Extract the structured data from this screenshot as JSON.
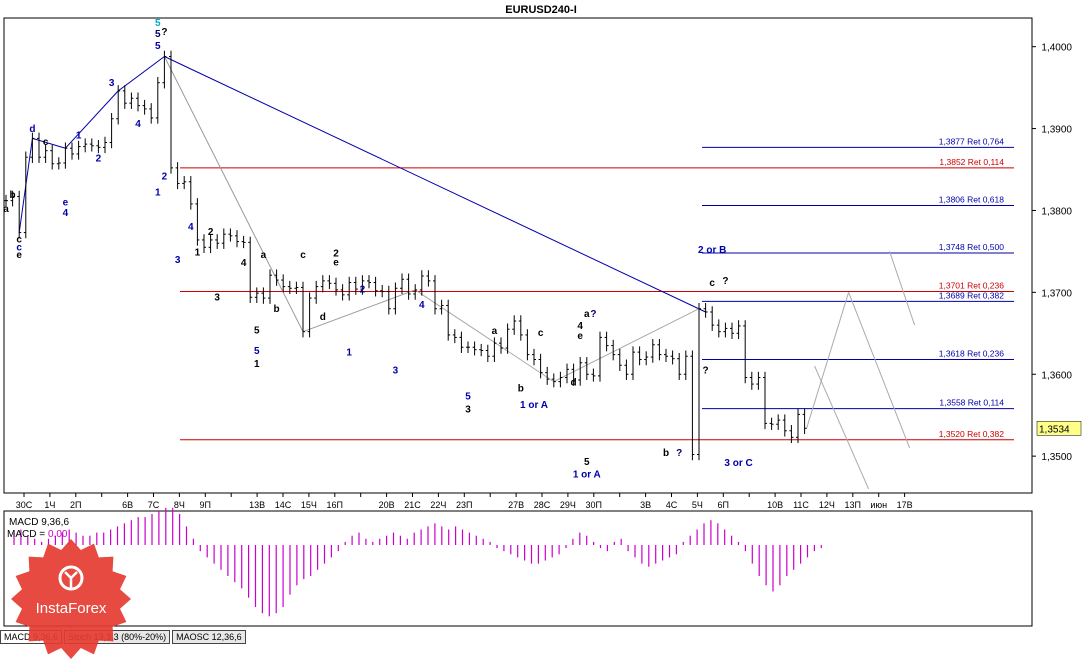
{
  "chart_data": {
    "type": "line",
    "title": "EURUSD240-I",
    "price_axis": {
      "min": 1.3455,
      "max": 1.4035,
      "ticks": [
        "1,4000",
        "1,3900",
        "1,3800",
        "1,3700",
        "1,3600",
        "1,3500"
      ],
      "current": "1,3534"
    },
    "x_labels": [
      "30C",
      "1Ч",
      "2П",
      "",
      "6В",
      "7С",
      "8Ч",
      "9П",
      "",
      "13В",
      "14С",
      "15Ч",
      "16П",
      "",
      "20В",
      "21С",
      "22Ч",
      "23П",
      "",
      "27В",
      "28С",
      "29Ч",
      "30П",
      "",
      "3В",
      "4С",
      "5Ч",
      "6П",
      "",
      "10В",
      "11С",
      "12Ч",
      "13П",
      "июн",
      "17В"
    ],
    "series": [
      {
        "values": [
          1.3812,
          1.3817,
          1.3773,
          1.3865,
          1.3888,
          1.3865,
          1.3873,
          1.3857,
          1.3858,
          1.3876,
          1.3869,
          1.3878,
          1.3881,
          1.3879,
          1.3877,
          1.3883,
          1.3912,
          1.3946,
          1.3931,
          1.3937,
          1.3928,
          1.3924,
          1.3913,
          1.3956,
          1.3988,
          1.3852,
          1.3833,
          1.3835,
          1.3808,
          1.3764,
          1.3755,
          1.3764,
          1.376,
          1.3771,
          1.3769,
          1.3762,
          1.3761,
          1.3694,
          1.3699,
          1.3693,
          1.3721,
          1.3715,
          1.3707,
          1.3705,
          1.3706,
          1.3652,
          1.3693,
          1.3707,
          1.3714,
          1.3711,
          1.3703,
          1.3697,
          1.3712,
          1.3704,
          1.3714,
          1.3712,
          1.3702,
          1.3701,
          1.368,
          1.3705,
          1.3716,
          1.3698,
          1.3703,
          1.372,
          1.3714,
          1.368,
          1.3684,
          1.3648,
          1.3645,
          1.3633,
          1.3633,
          1.363,
          1.3629,
          1.3622,
          1.3638,
          1.3632,
          1.3655,
          1.3665,
          1.3648,
          1.3624,
          1.3618,
          1.3602,
          1.3594,
          1.3591,
          1.3596,
          1.3606,
          1.3593,
          1.3614,
          1.36,
          1.3598,
          1.3645,
          1.3635,
          1.3624,
          1.3611,
          1.36,
          1.3627,
          1.3618,
          1.3621,
          1.3636,
          1.3624,
          1.3622,
          1.3619,
          1.36,
          1.3622,
          1.3502,
          1.368,
          1.3676,
          1.366,
          1.3652,
          1.3656,
          1.365,
          1.3659,
          1.3596,
          1.3588,
          1.3596,
          1.354,
          1.3539,
          1.3544,
          1.3531,
          1.3523,
          1.3551,
          1.3534
        ]
      }
    ],
    "ret_levels": [
      {
        "value": 1.3877,
        "label": "1,3877 Ret 0,764",
        "color": "#0000aa"
      },
      {
        "value": 1.3852,
        "label": "1,3852 Ret 0,114",
        "color": "#cc0000"
      },
      {
        "value": 1.3806,
        "label": "1,3806 Ret 0,618",
        "color": "#0000aa"
      },
      {
        "value": 1.3748,
        "label": "1,3748 Ret 0,500",
        "color": "#0000aa"
      },
      {
        "value": 1.3701,
        "label": "1,3701 Ret 0,236",
        "color": "#cc0000"
      },
      {
        "value": 1.3689,
        "label": "1,3689 Ret 0,382",
        "color": "#0000aa"
      },
      {
        "value": 1.3618,
        "label": "1,3618 Ret 0,236",
        "color": "#0000aa"
      },
      {
        "value": 1.3558,
        "label": "1,3558 Ret 0,114",
        "color": "#0000aa"
      },
      {
        "value": 1.352,
        "label": "1,3520 Ret 0,382",
        "color": "#cc0000"
      }
    ],
    "wave_labels": [
      {
        "x": 0,
        "y": 1.3798,
        "text": "a",
        "color": "#000000"
      },
      {
        "x": 1,
        "y": 1.3815,
        "text": "b",
        "color": "#000000"
      },
      {
        "x": 2,
        "y": 1.3761,
        "text": "c",
        "color": "#000000"
      },
      {
        "x": 2,
        "y": 1.3751,
        "text": "c",
        "color": "#0000aa"
      },
      {
        "x": 2,
        "y": 1.3742,
        "text": "e",
        "color": "#000000"
      },
      {
        "x": 4,
        "y": 1.3896,
        "text": "d",
        "color": "#0000aa"
      },
      {
        "x": 6,
        "y": 1.388,
        "text": "c",
        "color": "#000000"
      },
      {
        "x": 9,
        "y": 1.3806,
        "text": "e",
        "color": "#0000aa"
      },
      {
        "x": 9,
        "y": 1.3793,
        "text": "4",
        "color": "#0000aa"
      },
      {
        "x": 11,
        "y": 1.3888,
        "text": "1",
        "color": "#0000aa"
      },
      {
        "x": 14,
        "y": 1.386,
        "text": "2",
        "color": "#0000aa"
      },
      {
        "x": 16,
        "y": 1.3952,
        "text": "3",
        "color": "#0000aa"
      },
      {
        "x": 20,
        "y": 1.3902,
        "text": "4",
        "color": "#0000aa"
      },
      {
        "x": 23,
        "y": 1.4025,
        "text": "5",
        "color": "#00aacc"
      },
      {
        "x": 23,
        "y": 1.4012,
        "text": "5",
        "color": "#000066"
      },
      {
        "x": 24,
        "y": 1.4014,
        "text": "?",
        "color": "#000000"
      },
      {
        "x": 23,
        "y": 1.3997,
        "text": "5",
        "color": "#0000aa"
      },
      {
        "x": 24,
        "y": 1.3838,
        "text": "2",
        "color": "#0000aa"
      },
      {
        "x": 23,
        "y": 1.3818,
        "text": "1",
        "color": "#0000aa"
      },
      {
        "x": 26,
        "y": 1.3736,
        "text": "3",
        "color": "#0000aa"
      },
      {
        "x": 28,
        "y": 1.3776,
        "text": "4",
        "color": "#0000aa"
      },
      {
        "x": 29,
        "y": 1.3745,
        "text": "1",
        "color": "#000000"
      },
      {
        "x": 31,
        "y": 1.377,
        "text": "2",
        "color": "#000000"
      },
      {
        "x": 32,
        "y": 1.369,
        "text": "3",
        "color": "#000000"
      },
      {
        "x": 36,
        "y": 1.3732,
        "text": "4",
        "color": "#000000"
      },
      {
        "x": 38,
        "y": 1.365,
        "text": "5",
        "color": "#000000"
      },
      {
        "x": 38,
        "y": 1.3625,
        "text": "5",
        "color": "#0000aa"
      },
      {
        "x": 38,
        "y": 1.3609,
        "text": "1",
        "color": "#000000"
      },
      {
        "x": 39,
        "y": 1.3742,
        "text": "a",
        "color": "#000000"
      },
      {
        "x": 41,
        "y": 1.3676,
        "text": "b",
        "color": "#000000"
      },
      {
        "x": 45,
        "y": 1.3742,
        "text": "c",
        "color": "#000000"
      },
      {
        "x": 48,
        "y": 1.3666,
        "text": "d",
        "color": "#000000"
      },
      {
        "x": 50,
        "y": 1.3744,
        "text": "2",
        "color": "#000000"
      },
      {
        "x": 50,
        "y": 1.3733,
        "text": "e",
        "color": "#000000"
      },
      {
        "x": 54,
        "y": 1.37,
        "text": "2",
        "color": "#0000aa"
      },
      {
        "x": 52,
        "y": 1.3623,
        "text": "1",
        "color": "#0000aa"
      },
      {
        "x": 59,
        "y": 1.3601,
        "text": "3",
        "color": "#0000aa"
      },
      {
        "x": 63,
        "y": 1.3681,
        "text": "4",
        "color": "#0000aa"
      },
      {
        "x": 70,
        "y": 1.3569,
        "text": "5",
        "color": "#0000aa"
      },
      {
        "x": 70,
        "y": 1.3553,
        "text": "3",
        "color": "#000000"
      },
      {
        "x": 74,
        "y": 1.3649,
        "text": "a",
        "color": "#000000"
      },
      {
        "x": 78,
        "y": 1.3579,
        "text": "b",
        "color": "#000000"
      },
      {
        "x": 81,
        "y": 1.3647,
        "text": "c",
        "color": "#000000"
      },
      {
        "x": 80,
        "y": 1.3559,
        "text": "1 or A",
        "color": "#0000aa"
      },
      {
        "x": 86,
        "y": 1.3586,
        "text": "d",
        "color": "#000000"
      },
      {
        "x": 87,
        "y": 1.3655,
        "text": "4",
        "color": "#000000"
      },
      {
        "x": 87,
        "y": 1.3643,
        "text": "e",
        "color": "#000000"
      },
      {
        "x": 88,
        "y": 1.367,
        "text": "a",
        "color": "#000000"
      },
      {
        "x": 89,
        "y": 1.367,
        "text": "?",
        "color": "#000066"
      },
      {
        "x": 88,
        "y": 1.3489,
        "text": "5",
        "color": "#000000"
      },
      {
        "x": 88,
        "y": 1.3474,
        "text": "1 or A",
        "color": "#0000aa"
      },
      {
        "x": 100,
        "y": 1.35,
        "text": "b",
        "color": "#000000"
      },
      {
        "x": 102,
        "y": 1.35,
        "text": "?",
        "color": "#000066"
      },
      {
        "x": 106,
        "y": 1.3601,
        "text": "?",
        "color": "#000000"
      },
      {
        "x": 107,
        "y": 1.3748,
        "text": "2 or B",
        "color": "#0000aa"
      },
      {
        "x": 107,
        "y": 1.3708,
        "text": "c",
        "color": "#000000"
      },
      {
        "x": 109,
        "y": 1.371,
        "text": "?",
        "color": "#000000"
      },
      {
        "x": 111,
        "y": 1.3488,
        "text": "3 or C",
        "color": "#0000aa"
      }
    ],
    "indicator": {
      "name": "MACD 9,36,6",
      "line_label": "MACD =",
      "line_value": "0.00",
      "histogram": [
        0.4,
        0.5,
        0.3,
        0.2,
        0.1,
        0.2,
        0.3,
        0.4,
        0.5,
        0.4,
        0.3,
        0.3,
        0.4,
        0.4,
        0.5,
        0.6,
        0.7,
        0.8,
        0.9,
        0.9,
        1.0,
        1.1,
        1.2,
        1.2,
        1.0,
        0.6,
        0.2,
        -0.2,
        -0.4,
        -0.6,
        -0.8,
        -1.0,
        -1.2,
        -1.4,
        -1.7,
        -2.0,
        -2.2,
        -2.3,
        -2.2,
        -2.0,
        -1.6,
        -1.3,
        -1.1,
        -1.0,
        -0.8,
        -0.6,
        -0.4,
        -0.2,
        0.1,
        0.3,
        0.4,
        0.2,
        0.1,
        0.2,
        0.3,
        0.4,
        0.3,
        0.2,
        0.4,
        0.5,
        0.6,
        0.7,
        0.6,
        0.5,
        0.6,
        0.5,
        0.4,
        0.3,
        0.2,
        0.1,
        -0.1,
        -0.2,
        -0.3,
        -0.4,
        -0.5,
        -0.6,
        -0.6,
        -0.5,
        -0.4,
        -0.3,
        -0.1,
        0.2,
        0.4,
        0.3,
        0.1,
        -0.1,
        -0.2,
        0.1,
        0.2,
        -0.2,
        -0.4,
        -0.6,
        -0.7,
        -0.6,
        -0.5,
        -0.4,
        -0.3,
        0.1,
        0.3,
        0.5,
        0.7,
        0.8,
        0.7,
        0.5,
        0.3,
        0.1,
        -0.2,
        -0.6,
        -1.0,
        -1.3,
        -1.5,
        -1.3,
        -1.0,
        -0.8,
        -0.6,
        -0.4,
        -0.2,
        -0.1
      ],
      "tabs": [
        "MACD 9,36,6",
        "Stoch 13,3,3 (80%-20%)",
        "MAOSC 12,36,6"
      ]
    },
    "colors": {
      "up": "#000000",
      "wave_blue": "#0000aa",
      "fib_red": "#cc0000",
      "fib_blue": "#0000aa",
      "hist": "#cc00cc",
      "current_price_bg": "#ffff88",
      "logo": "#e43b30"
    },
    "watermark": "InstaForex"
  }
}
